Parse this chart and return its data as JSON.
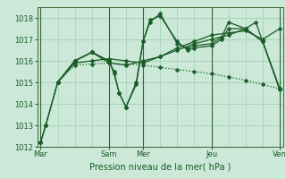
{
  "bg_color": "#cce8d8",
  "grid_color": "#99ccaa",
  "line_color": "#1a5c28",
  "xlabel": "Pression niveau de la mer( hPa )",
  "ylim": [
    1012,
    1018.5
  ],
  "yticks": [
    1012,
    1013,
    1014,
    1015,
    1016,
    1017,
    1018
  ],
  "xtick_labels": [
    "Mar",
    "",
    "Sam",
    "Mer",
    "",
    "Jeu",
    "",
    "Ven"
  ],
  "xtick_positions": [
    0,
    1,
    2,
    3,
    4,
    5,
    6,
    7
  ],
  "vline_positions": [
    0,
    2,
    3,
    5,
    7
  ],
  "lines": {
    "A": {
      "x": [
        0,
        0.15,
        0.5,
        1.0,
        1.5,
        2.0,
        2.5,
        3.0,
        3.5,
        4.0,
        4.5,
        5.0,
        5.5,
        6.0,
        6.5,
        7.0
      ],
      "y": [
        1012.2,
        1013.0,
        1015.0,
        1015.8,
        1015.85,
        1015.9,
        1015.85,
        1015.8,
        1015.7,
        1015.6,
        1015.5,
        1015.4,
        1015.25,
        1015.1,
        1014.9,
        1014.7
      ],
      "style": "dotted"
    },
    "B": {
      "x": [
        0,
        0.15,
        0.5,
        1.0,
        1.5,
        2.0,
        2.5,
        3.0,
        3.5,
        4.0,
        4.5,
        5.0,
        5.5,
        6.0,
        6.5,
        7.0
      ],
      "y": [
        1012.2,
        1013.0,
        1015.0,
        1015.9,
        1016.0,
        1016.1,
        1016.0,
        1015.9,
        1016.2,
        1016.6,
        1016.9,
        1017.2,
        1017.3,
        1017.4,
        1017.0,
        1017.5
      ],
      "style": "solid"
    },
    "C": {
      "x": [
        0.5,
        1.0,
        1.5,
        2.0,
        2.15,
        2.3,
        2.5,
        2.8,
        3.0,
        3.2,
        3.5,
        4.0,
        4.3,
        4.5,
        5.0,
        5.3,
        5.5,
        6.0,
        6.3,
        6.5,
        7.0
      ],
      "y": [
        1015.0,
        1016.0,
        1016.4,
        1016.0,
        1015.5,
        1014.5,
        1013.85,
        1014.9,
        1016.9,
        1017.8,
        1018.2,
        1016.8,
        1016.6,
        1016.7,
        1016.8,
        1017.1,
        1017.8,
        1017.5,
        1017.8,
        1016.9,
        1014.7
      ],
      "style": "solid"
    },
    "D": {
      "x": [
        0.5,
        1.0,
        1.5,
        2.0,
        2.15,
        2.3,
        2.5,
        2.8,
        3.0,
        3.2,
        3.5,
        4.0,
        4.3,
        4.5,
        5.0,
        5.3,
        5.5,
        6.0,
        6.5,
        7.0
      ],
      "y": [
        1015.0,
        1016.0,
        1016.4,
        1016.0,
        1015.4,
        1014.5,
        1013.85,
        1015.0,
        1016.9,
        1017.9,
        1018.1,
        1016.9,
        1016.5,
        1016.6,
        1016.7,
        1017.0,
        1017.5,
        1017.5,
        1016.9,
        1014.65
      ],
      "style": "solid"
    },
    "E": {
      "x": [
        0,
        0.15,
        0.5,
        1.0,
        1.5,
        2.0,
        2.5,
        3.0,
        3.5,
        4.0,
        4.5,
        5.0,
        5.5,
        6.0,
        6.5,
        7.0
      ],
      "y": [
        1012.2,
        1013.0,
        1015.0,
        1016.0,
        1016.4,
        1015.9,
        1015.8,
        1016.0,
        1016.2,
        1016.5,
        1016.8,
        1017.0,
        1017.2,
        1017.5,
        1016.9,
        1014.7
      ],
      "style": "solid"
    }
  },
  "marker_size": 2.5,
  "linewidth": 0.9,
  "xlabel_fontsize": 7,
  "tick_fontsize": 6,
  "ylabel_fontsize": 6
}
